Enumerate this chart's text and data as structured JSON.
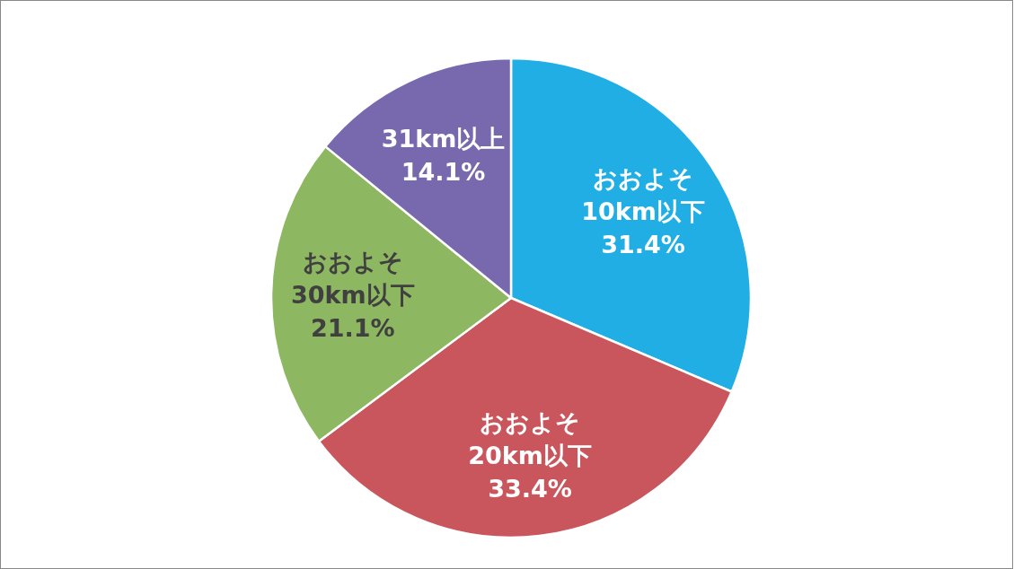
{
  "chart_data": {
    "type": "pie",
    "categories": [
      "おおよそ\n10km以下",
      "おおよそ\n20km以下",
      "おおよそ\n30km以下",
      "31km以上"
    ],
    "values": [
      31.4,
      33.4,
      21.1,
      14.1
    ],
    "colors": [
      "#20aee5",
      "#c9565c",
      "#8db861",
      "#7868ae"
    ],
    "value_labels": [
      "31.4%",
      "33.4%",
      "21.1%",
      "14.1%"
    ]
  }
}
